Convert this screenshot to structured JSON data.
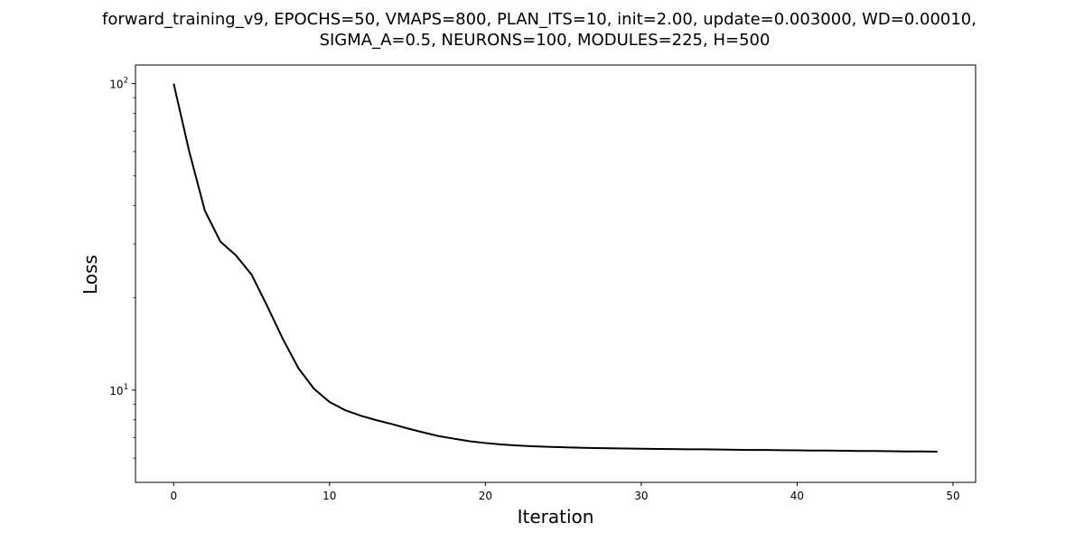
{
  "chart_data": {
    "type": "line",
    "title_lines": [
      "forward_training_v9, EPOCHS=50, VMAPS=800, PLAN_ITS=10, init=2.00, update=0.003000, WD=0.00010,",
      "SIGMA_A=0.5, NEURONS=100, MODULES=225, H=500"
    ],
    "xlabel": "Iteration",
    "ylabel": "Loss",
    "xlim": [
      -2.45,
      51.45
    ],
    "ylim": [
      5.0,
      115.0
    ],
    "yscale": "log",
    "grid": false,
    "legend": "none",
    "x_ticks": [
      0,
      10,
      20,
      30,
      40,
      50
    ],
    "x_tick_labels": [
      "0",
      "10",
      "20",
      "30",
      "40",
      "50"
    ],
    "y_major_ticks": [
      {
        "value": 10,
        "base": "10",
        "exp": "1"
      },
      {
        "value": 100,
        "base": "10",
        "exp": "2"
      }
    ],
    "y_minor_ticks": [
      6,
      7,
      8,
      9,
      20,
      30,
      40,
      50,
      60,
      70,
      80,
      90
    ],
    "series": [
      {
        "color": "#000000",
        "x": [
          0,
          1,
          2,
          3,
          4,
          5,
          6,
          7,
          8,
          9,
          10,
          11,
          12,
          13,
          14,
          15,
          16,
          17,
          18,
          19,
          20,
          21,
          22,
          23,
          24,
          25,
          26,
          27,
          28,
          29,
          30,
          31,
          32,
          33,
          34,
          35,
          36,
          37,
          38,
          39,
          40,
          41,
          42,
          43,
          44,
          45,
          46,
          47,
          48,
          49
        ],
        "y": [
          100,
          60,
          38.5,
          30.5,
          27.5,
          23.8,
          18.8,
          14.7,
          11.8,
          10.1,
          9.15,
          8.6,
          8.25,
          7.98,
          7.75,
          7.5,
          7.28,
          7.08,
          6.94,
          6.81,
          6.72,
          6.65,
          6.6,
          6.56,
          6.53,
          6.51,
          6.49,
          6.47,
          6.46,
          6.45,
          6.44,
          6.43,
          6.42,
          6.41,
          6.41,
          6.4,
          6.39,
          6.38,
          6.38,
          6.37,
          6.36,
          6.35,
          6.35,
          6.34,
          6.33,
          6.33,
          6.32,
          6.31,
          6.31,
          6.3
        ]
      }
    ]
  }
}
